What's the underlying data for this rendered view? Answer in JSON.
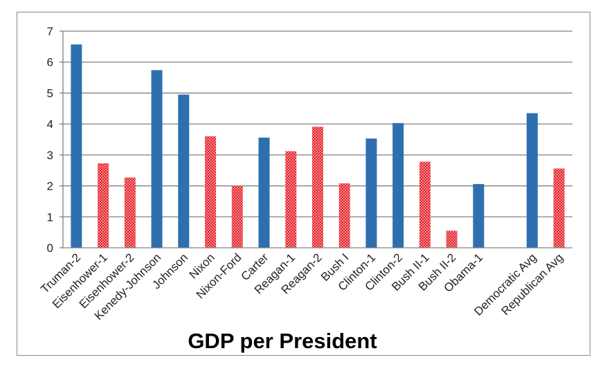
{
  "chart_data": {
    "type": "bar",
    "title": "GDP per President",
    "xlabel": "",
    "ylabel": "",
    "ylim": [
      0,
      7
    ],
    "yticks": [
      "0",
      "1",
      "2",
      "3",
      "4",
      "5",
      "6",
      "7"
    ],
    "grid": true,
    "categories": [
      "Truman-2",
      "Eisenhower-1",
      "Eisenhower-2",
      "Kenedy-Johnson",
      "Johnson",
      "Nixon",
      "Nixon-Ford",
      "Carter",
      "Reagan-1",
      "Reagan-2",
      "Bush I",
      "Clinton-1",
      "Clinton-2",
      "Bush II-1",
      "Bush II-2",
      "Obama-1",
      "",
      "Democratic Avg",
      "Republican Avg"
    ],
    "values": [
      6.57,
      2.73,
      2.27,
      5.74,
      4.95,
      3.6,
      2.0,
      3.56,
      3.12,
      3.91,
      2.08,
      3.53,
      4.03,
      2.78,
      0.55,
      2.06,
      null,
      4.35,
      2.56
    ],
    "party": [
      "D",
      "R",
      "R",
      "D",
      "D",
      "R",
      "R",
      "D",
      "R",
      "R",
      "R",
      "D",
      "D",
      "R",
      "R",
      "D",
      "",
      "D",
      "R"
    ],
    "colors": {
      "D": "#2e6fb0",
      "R": "#e8232a",
      "R_pattern": "#f6b3b5",
      "grid": "#808080",
      "axis": "#808080"
    }
  }
}
